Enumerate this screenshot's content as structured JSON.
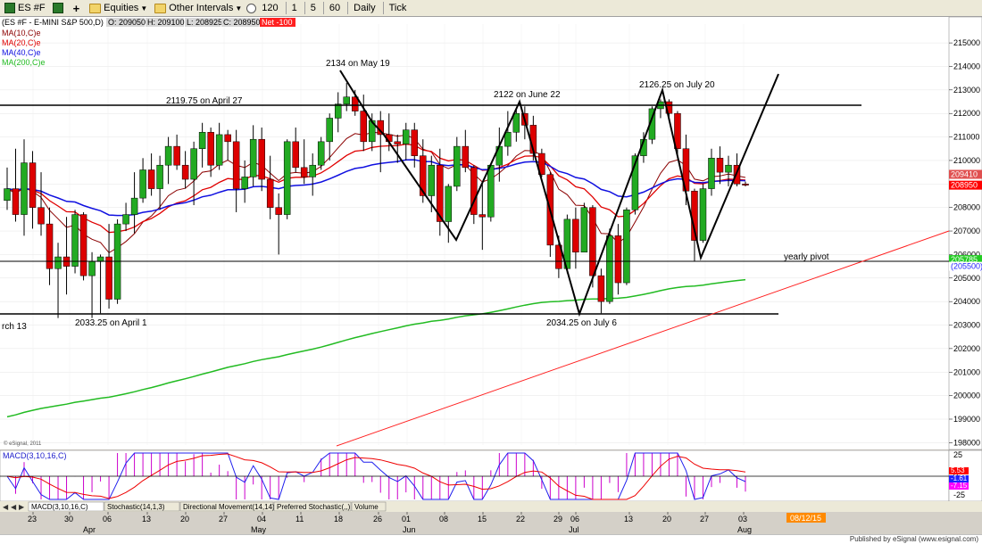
{
  "toolbar": {
    "symbol": "ES #F",
    "equities_label": "Equities",
    "other_intervals_label": "Other Intervals",
    "interval_items": [
      "120",
      "1",
      "5",
      "60",
      "Daily",
      "Tick"
    ]
  },
  "chart_title": "(ES #F - E-MINI S&P 500,D)",
  "ohlc": {
    "open": "O: 209050",
    "high": "H: 209100",
    "low": "L: 208925",
    "close": "C: 208950",
    "net": "Net -100"
  },
  "legend": [
    {
      "label": "MA(10,C)e",
      "color": "#8b0000"
    },
    {
      "label": "MA(20,C)e",
      "color": "#e00000"
    },
    {
      "label": "MA(40,C)e",
      "color": "#1010e0"
    },
    {
      "label": "MA(200,C)e",
      "color": "#22bb22"
    }
  ],
  "colors": {
    "up": "#22aa22",
    "down": "#dd0000",
    "bg": "#ffffff"
  },
  "chart_data": {
    "type": "candlestick",
    "ylim": [
      197900,
      215800
    ],
    "y_ticks": [
      "215000",
      "214000",
      "213000",
      "212000",
      "211000",
      "210000",
      "209000",
      "208000",
      "207000",
      "206000",
      "205000",
      "204000",
      "203000",
      "202000",
      "201000",
      "200000",
      "199000",
      "198000"
    ],
    "x_ticks": [
      "23",
      "30",
      "06",
      "13",
      "20",
      "27",
      "04",
      "11",
      "18",
      "26",
      "01",
      "08",
      "15",
      "22",
      "29",
      "06",
      "13",
      "20",
      "27",
      "03"
    ],
    "month_labels": [
      "Apr",
      "May",
      "Jun",
      "Jul",
      "Aug"
    ],
    "date_tag": "08/12/15",
    "price_tags": [
      {
        "value": "209410",
        "color": "#e05050"
      },
      {
        "value": "208950",
        "color": "#ff0000"
      },
      {
        "value": "205785",
        "color": "#22cc22"
      },
      {
        "value": "(205500)",
        "color": "#2020ff"
      }
    ],
    "annotations": [
      "2134 on May 19",
      "2119.75 on April 27",
      "2122 on June 22",
      "2126.25 on July 20",
      "2033.25 on April 1",
      "2034.25 on July 6",
      "yearly pivot",
      "rch 13"
    ],
    "ohlc_series": [
      [
        208300,
        209700,
        207900,
        208800
      ],
      [
        208800,
        210500,
        207400,
        207700
      ],
      [
        207700,
        210900,
        206800,
        209900
      ],
      [
        209900,
        210400,
        207100,
        208000
      ],
      [
        208000,
        209500,
        206800,
        207300
      ],
      [
        207300,
        208000,
        204700,
        205400
      ],
      [
        205400,
        206500,
        203300,
        205900
      ],
      [
        205900,
        207600,
        204300,
        205500
      ],
      [
        205500,
        207900,
        205200,
        207700
      ],
      [
        207700,
        207800,
        204900,
        205100
      ],
      [
        205100,
        206100,
        203300,
        205700
      ],
      [
        205700,
        206000,
        203500,
        205900
      ],
      [
        205900,
        207300,
        203700,
        204100
      ],
      [
        204100,
        207500,
        203900,
        207300
      ],
      [
        207300,
        208200,
        207000,
        207700
      ],
      [
        207700,
        209500,
        206900,
        208400
      ],
      [
        208400,
        210100,
        208200,
        209600
      ],
      [
        209600,
        210300,
        208500,
        208800
      ],
      [
        208800,
        210200,
        207900,
        209800
      ],
      [
        209800,
        211000,
        209000,
        210600
      ],
      [
        210600,
        211100,
        209600,
        209800
      ],
      [
        209800,
        210400,
        208800,
        209200
      ],
      [
        209200,
        210800,
        208100,
        210500
      ],
      [
        210500,
        211600,
        209700,
        211200
      ],
      [
        211200,
        211400,
        209300,
        209800
      ],
      [
        209800,
        211600,
        209600,
        211100
      ],
      [
        211100,
        211300,
        210000,
        210800
      ],
      [
        210800,
        211300,
        207800,
        208800
      ],
      [
        208800,
        210000,
        208200,
        209300
      ],
      [
        209300,
        211500,
        208900,
        210900
      ],
      [
        210900,
        211400,
        208700,
        209200
      ],
      [
        209200,
        210200,
        207500,
        208000
      ],
      [
        208000,
        208600,
        206000,
        207700
      ],
      [
        207700,
        210900,
        207500,
        210800
      ],
      [
        210800,
        211400,
        209500,
        209700
      ],
      [
        209700,
        210900,
        209000,
        209300
      ],
      [
        209300,
        210300,
        208500,
        209800
      ],
      [
        209800,
        211000,
        209600,
        210800
      ],
      [
        210800,
        212000,
        210000,
        211800
      ],
      [
        211800,
        212900,
        211200,
        212400
      ],
      [
        212400,
        213300,
        212100,
        212700
      ],
      [
        212700,
        213000,
        211900,
        212100
      ],
      [
        212100,
        212800,
        210400,
        210800
      ],
      [
        210800,
        212000,
        210400,
        211700
      ],
      [
        211700,
        212100,
        209500,
        211100
      ],
      [
        211100,
        212000,
        210400,
        210800
      ],
      [
        210800,
        211100,
        209900,
        210700
      ],
      [
        210700,
        211600,
        210000,
        211300
      ],
      [
        211300,
        211600,
        209700,
        210200
      ],
      [
        210200,
        210900,
        208200,
        208500
      ],
      [
        208500,
        210200,
        207800,
        209800
      ],
      [
        209800,
        210500,
        206800,
        207400
      ],
      [
        207400,
        209000,
        206500,
        208900
      ],
      [
        208900,
        211000,
        208700,
        210600
      ],
      [
        210600,
        211300,
        209500,
        209700
      ],
      [
        209700,
        209800,
        207300,
        207700
      ],
      [
        207700,
        209000,
        206200,
        207600
      ],
      [
        207600,
        209800,
        207400,
        209800
      ],
      [
        209800,
        211400,
        209100,
        210600
      ],
      [
        210600,
        212100,
        210200,
        211200
      ],
      [
        211200,
        212200,
        210800,
        212000
      ],
      [
        212000,
        212300,
        210900,
        211500
      ],
      [
        211500,
        211900,
        210000,
        210300
      ],
      [
        210300,
        210500,
        209300,
        209400
      ],
      [
        209400,
        209500,
        205900,
        206400
      ],
      [
        206400,
        206800,
        205000,
        205400
      ],
      [
        205400,
        207700,
        205200,
        207500
      ],
      [
        207500,
        208000,
        205400,
        206100
      ],
      [
        206100,
        208200,
        206200,
        208000
      ],
      [
        208000,
        208100,
        204600,
        205100
      ],
      [
        205100,
        205400,
        203500,
        204000
      ],
      [
        204000,
        207100,
        203900,
        206800
      ],
      [
        206800,
        207300,
        204300,
        204800
      ],
      [
        204800,
        208000,
        204700,
        207900
      ],
      [
        207900,
        210300,
        207700,
        210200
      ],
      [
        210200,
        211200,
        209900,
        210900
      ],
      [
        210900,
        212300,
        210700,
        212200
      ],
      [
        212200,
        212600,
        211800,
        212500
      ],
      [
        212500,
        212600,
        211700,
        212000
      ],
      [
        212000,
        212100,
        210200,
        210500
      ],
      [
        210500,
        211100,
        208100,
        208700
      ],
      [
        208700,
        208800,
        205700,
        206600
      ],
      [
        206600,
        209000,
        206500,
        208800
      ],
      [
        208800,
        210500,
        208500,
        210100
      ],
      [
        210100,
        210600,
        209000,
        209500
      ],
      [
        209500,
        210200,
        208900,
        209800
      ],
      [
        209800,
        210300,
        208900,
        209000
      ],
      [
        209000,
        209100,
        208900,
        208950
      ]
    ]
  },
  "macd": {
    "label": "MACD(3,10,16,C)",
    "y_ticks": [
      "25",
      "0",
      "-25"
    ],
    "tags": [
      {
        "value": "5.53",
        "color": "#ff0000"
      },
      {
        "value": "-1.61",
        "color": "#2020ff"
      },
      {
        "value": "-7.15",
        "color": "#ff00ff"
      }
    ]
  },
  "tabs": [
    "MACD(3,10,16,C)",
    "Stochastic(14,1,3)",
    "Directional Movement(14,14)",
    "Preferred Stochastic(,,)",
    "Volume"
  ],
  "copyright": "© eSignal, 2011",
  "footer": "Published by eSignal (www.esignal.com)"
}
